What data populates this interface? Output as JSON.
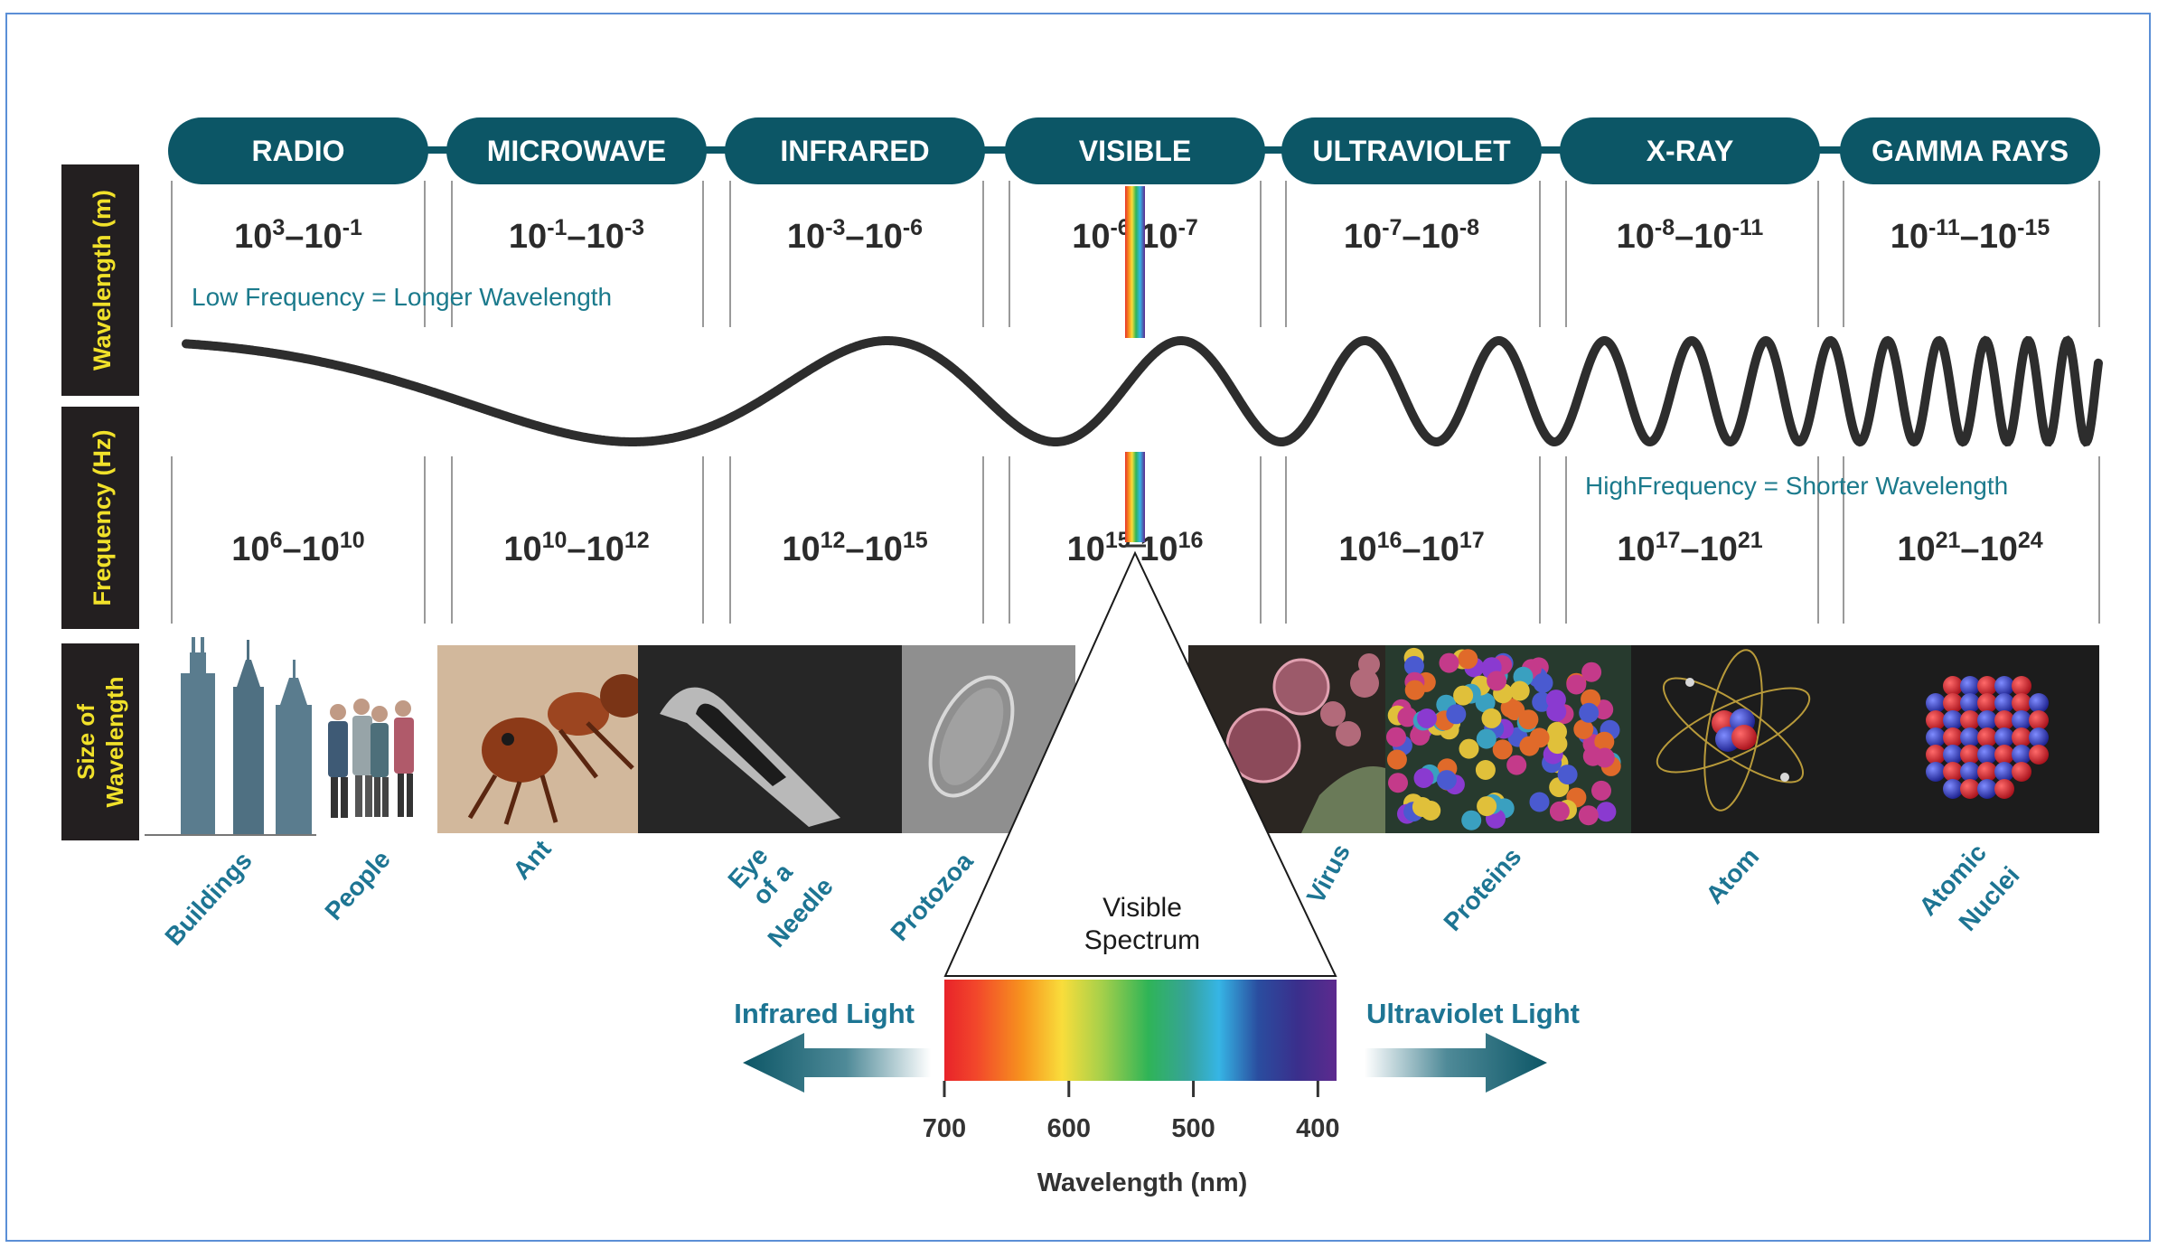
{
  "bands": [
    {
      "name": "RADIO",
      "wavelength_base1": "10",
      "wavelength_exp1": "3",
      "wavelength_base2": "10",
      "wavelength_exp2": "-1",
      "frequency_base1": "10",
      "frequency_exp1": "6",
      "frequency_base2": "10",
      "frequency_exp2": "10"
    },
    {
      "name": "MICROWAVE",
      "wavelength_base1": "10",
      "wavelength_exp1": "-1",
      "wavelength_base2": "10",
      "wavelength_exp2": "-3",
      "frequency_base1": "10",
      "frequency_exp1": "10",
      "frequency_base2": "10",
      "frequency_exp2": "12"
    },
    {
      "name": "INFRARED",
      "wavelength_base1": "10",
      "wavelength_exp1": "-3",
      "wavelength_base2": "10",
      "wavelength_exp2": "-6",
      "frequency_base1": "10",
      "frequency_exp1": "12",
      "frequency_base2": "10",
      "frequency_exp2": "15"
    },
    {
      "name": "VISIBLE",
      "wavelength_base1": "10",
      "wavelength_exp1": "-6",
      "wavelength_base2": "10",
      "wavelength_exp2": "-7",
      "frequency_base1": "10",
      "frequency_exp1": "15",
      "frequency_base2": "10",
      "frequency_exp2": "16"
    },
    {
      "name": "ULTRAVIOLET",
      "wavelength_base1": "10",
      "wavelength_exp1": "-7",
      "wavelength_base2": "10",
      "wavelength_exp2": "-8",
      "frequency_base1": "10",
      "frequency_exp1": "16",
      "frequency_base2": "10",
      "frequency_exp2": "17"
    },
    {
      "name": "X-RAY",
      "wavelength_base1": "10",
      "wavelength_exp1": "-8",
      "wavelength_base2": "10",
      "wavelength_exp2": "-11",
      "frequency_base1": "10",
      "frequency_exp1": "17",
      "frequency_base2": "10",
      "frequency_exp2": "21"
    },
    {
      "name": "GAMMA RAYS",
      "wavelength_base1": "10",
      "wavelength_exp1": "-11",
      "wavelength_base2": "10",
      "wavelength_exp2": "-15",
      "frequency_base1": "10",
      "frequency_exp1": "21",
      "frequency_base2": "10",
      "frequency_exp2": "24"
    }
  ],
  "row_labels": {
    "wavelength": "Wavelength (m)",
    "frequency": "Frequency (Hz)",
    "size_line1": "Size of",
    "size_line2": "Wavelength"
  },
  "annotations": {
    "low": "Low Frequency = Longer Wavelength",
    "high": "HighFrequency = Shorter Wavelength"
  },
  "size_labels": {
    "buildings": "Buildings",
    "people": "People",
    "ant": "Ant",
    "needle_1": "Eye",
    "needle_2": "of a",
    "needle_3": "Needle",
    "protozoa": "Protozoa",
    "virus": "Virus",
    "proteins": "Proteins",
    "atom": "Atom",
    "nuclei_1": "Atomic",
    "nuclei_2": "Nuclei"
  },
  "visible_spectrum": {
    "title_line1": "Visible",
    "title_line2": "Spectrum",
    "left_label": "Infrared Light",
    "right_label": "Ultraviolet Light",
    "axis_label": "Wavelength (nm)",
    "ticks": [
      "700",
      "600",
      "500",
      "400"
    ]
  },
  "colors": {
    "band_pill": "#0c5666",
    "row_label_bg": "#231f20",
    "row_label_text": "#f1e12a",
    "label_teal": "#1d7593",
    "annotation_teal": "#1b7a8c",
    "wave": "#2d2d2d",
    "frame": "#5b8fd6"
  }
}
